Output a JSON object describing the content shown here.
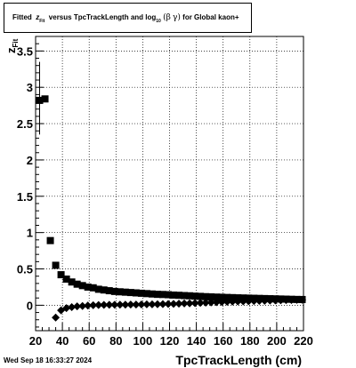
{
  "title": {
    "prefix": "Fitted",
    "z_main": "z",
    "z_sub": "Fit",
    "mid": "versus TpcTrackLength and log",
    "log_sub": "10",
    "paren_open": "(",
    "beta": "β",
    "gamma": "γ",
    "paren_close": ")",
    "suffix": "for Global kaon+"
  },
  "datestamp": "Wed Sep 18 16:33:27 2024",
  "chart_data": {
    "type": "scatter",
    "xlabel": "TpcTrackLength (cm)",
    "ylabel": "z",
    "ylabel_sub": "Fit",
    "xlim": [
      20,
      220
    ],
    "ylim": [
      -0.35,
      3.7
    ],
    "x_ticks": [
      20,
      40,
      60,
      80,
      100,
      120,
      140,
      160,
      180,
      200,
      220
    ],
    "x_tick_labels": [
      "20",
      "40",
      "60",
      "80",
      "100",
      "120",
      "140",
      "160",
      "180",
      "200",
      "220"
    ],
    "y_ticks": [
      0,
      0.5,
      1,
      1.5,
      2,
      2.5,
      3,
      3.5
    ],
    "y_tick_labels": [
      "0",
      "0.5",
      "1",
      "1.5",
      "2",
      "2.5",
      "3",
      "3.5"
    ],
    "grid": true,
    "series": [
      {
        "marker": "square",
        "points": [
          [
            23,
            2.82
          ],
          [
            27,
            2.84
          ],
          [
            31,
            0.89
          ],
          [
            35,
            0.55
          ],
          [
            39,
            0.42
          ],
          [
            43,
            0.36
          ],
          [
            47,
            0.32
          ],
          [
            51,
            0.29
          ],
          [
            55,
            0.27
          ],
          [
            59,
            0.25
          ],
          [
            63,
            0.24
          ],
          [
            67,
            0.22
          ],
          [
            71,
            0.21
          ],
          [
            75,
            0.2
          ],
          [
            79,
            0.19
          ],
          [
            83,
            0.185
          ],
          [
            87,
            0.18
          ],
          [
            91,
            0.175
          ],
          [
            95,
            0.17
          ],
          [
            99,
            0.165
          ],
          [
            103,
            0.16
          ],
          [
            107,
            0.155
          ],
          [
            111,
            0.15
          ],
          [
            115,
            0.148
          ],
          [
            119,
            0.145
          ],
          [
            123,
            0.14
          ],
          [
            127,
            0.137
          ],
          [
            131,
            0.133
          ],
          [
            135,
            0.13
          ],
          [
            139,
            0.125
          ],
          [
            143,
            0.122
          ],
          [
            147,
            0.118
          ],
          [
            151,
            0.115
          ],
          [
            155,
            0.112
          ],
          [
            159,
            0.11
          ],
          [
            163,
            0.107
          ],
          [
            167,
            0.105
          ],
          [
            171,
            0.102
          ],
          [
            175,
            0.1
          ],
          [
            179,
            0.098
          ],
          [
            183,
            0.096
          ],
          [
            187,
            0.094
          ],
          [
            191,
            0.092
          ],
          [
            195,
            0.09
          ],
          [
            199,
            0.088
          ],
          [
            203,
            0.086
          ],
          [
            207,
            0.084
          ],
          [
            211,
            0.082
          ],
          [
            215,
            0.08
          ],
          [
            219,
            0.079
          ]
        ],
        "err_low": [
          [
            23,
            2.35
          ]
        ],
        "err_high": [
          [
            23,
            3.35
          ]
        ]
      },
      {
        "marker": "diamond",
        "points": [
          [
            35,
            -0.17
          ],
          [
            39,
            -0.07
          ],
          [
            43,
            -0.04
          ],
          [
            47,
            -0.025
          ],
          [
            51,
            -0.015
          ],
          [
            55,
            -0.01
          ],
          [
            59,
            -0.005
          ],
          [
            63,
            0.0
          ],
          [
            67,
            0.003
          ],
          [
            71,
            0.005
          ],
          [
            75,
            0.006
          ],
          [
            79,
            0.007
          ],
          [
            83,
            0.008
          ],
          [
            87,
            0.008
          ],
          [
            91,
            0.009
          ],
          [
            95,
            0.01
          ],
          [
            99,
            0.011
          ],
          [
            103,
            0.012
          ],
          [
            107,
            0.013
          ],
          [
            111,
            0.014
          ],
          [
            115,
            0.015
          ],
          [
            119,
            0.017
          ],
          [
            123,
            0.019
          ],
          [
            127,
            0.021
          ],
          [
            131,
            0.024
          ],
          [
            135,
            0.027
          ],
          [
            139,
            0.03
          ],
          [
            143,
            0.033
          ],
          [
            147,
            0.036
          ],
          [
            151,
            0.039
          ],
          [
            155,
            0.042
          ],
          [
            159,
            0.045
          ],
          [
            163,
            0.048
          ],
          [
            167,
            0.05
          ],
          [
            171,
            0.052
          ],
          [
            175,
            0.054
          ],
          [
            179,
            0.056
          ],
          [
            183,
            0.058
          ],
          [
            187,
            0.06
          ],
          [
            191,
            0.062
          ],
          [
            195,
            0.064
          ],
          [
            199,
            0.066
          ],
          [
            203,
            0.068
          ],
          [
            207,
            0.07
          ],
          [
            211,
            0.072
          ],
          [
            215,
            0.074
          ],
          [
            219,
            0.075
          ]
        ]
      }
    ]
  }
}
